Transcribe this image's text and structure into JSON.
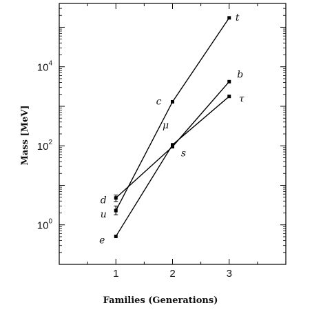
{
  "chart_data": {
    "type": "line",
    "xlabel": "Families (Generations)",
    "ylabel": "Mass [MeV]",
    "yscale": "log",
    "xlim": [
      0,
      4
    ],
    "ylim": [
      0.1,
      400000
    ],
    "xticks": [
      1,
      2,
      3
    ],
    "xtick_labels": [
      "1",
      "2",
      "3"
    ],
    "yticks": [
      1,
      100,
      10000
    ],
    "ytick_labels": [
      {
        "base": "10",
        "exp": "0"
      },
      {
        "base": "10",
        "exp": "2"
      },
      {
        "base": "10",
        "exp": "4"
      }
    ],
    "grid": false,
    "series": [
      {
        "x": [
          1,
          2,
          3
        ],
        "values": [
          2.3,
          1300,
          173000
        ],
        "labels": [
          "u",
          "c",
          "t"
        ]
      },
      {
        "x": [
          1,
          2,
          3
        ],
        "values": [
          4.8,
          95,
          4200
        ],
        "labels": [
          "d",
          "s",
          "b"
        ]
      },
      {
        "x": [
          1,
          2,
          3
        ],
        "values": [
          0.511,
          106,
          1777
        ],
        "labels": [
          "e",
          "μ",
          "τ"
        ]
      }
    ]
  }
}
